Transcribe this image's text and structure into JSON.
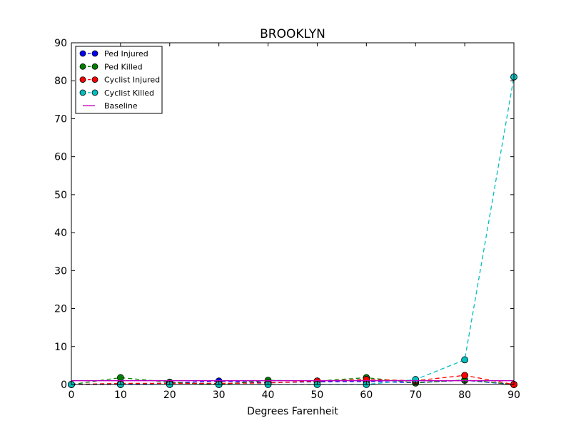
{
  "chart_data": {
    "type": "line",
    "title": "BROOKLYN",
    "xlabel": "Degrees Farenheit",
    "ylabel": "",
    "x": [
      0,
      10,
      20,
      30,
      40,
      50,
      60,
      70,
      80,
      90
    ],
    "xlim": [
      0,
      90
    ],
    "ylim": [
      0,
      90
    ],
    "xticks": [
      0,
      10,
      20,
      30,
      40,
      50,
      60,
      70,
      80,
      90
    ],
    "yticks": [
      0,
      10,
      20,
      30,
      40,
      50,
      60,
      70,
      80,
      90
    ],
    "grid": false,
    "legend_position": "top-left",
    "series": [
      {
        "name": "Ped Injured",
        "color": "#0000ff",
        "style": "dashed-markers",
        "values": [
          0.0,
          0.0,
          0.4,
          0.9,
          0.5,
          0.7,
          0.8,
          0.5,
          1.1,
          0.0
        ]
      },
      {
        "name": "Ped Killed",
        "color": "#008000",
        "style": "dashed-markers",
        "values": [
          0.0,
          1.8,
          0.6,
          0.0,
          1.1,
          0.9,
          1.8,
          0.4,
          1.2,
          0.0
        ]
      },
      {
        "name": "Cyclist Injured",
        "color": "#ff0000",
        "style": "dashed-markers",
        "values": [
          0.0,
          0.3,
          0.3,
          0.3,
          0.4,
          0.9,
          1.3,
          1.0,
          2.4,
          0.0
        ]
      },
      {
        "name": "Cyclist Killed",
        "color": "#00bfbf",
        "style": "dashed-markers",
        "values": [
          0.0,
          0.0,
          0.0,
          0.0,
          0.0,
          0.0,
          0.0,
          1.3,
          6.5,
          81.0
        ]
      },
      {
        "name": "Baseline",
        "color": "#bf00bf",
        "style": "solid",
        "values": [
          1.0,
          1.0,
          1.0,
          1.0,
          1.0,
          1.0,
          1.0,
          1.0,
          1.0,
          1.0
        ]
      }
    ]
  }
}
